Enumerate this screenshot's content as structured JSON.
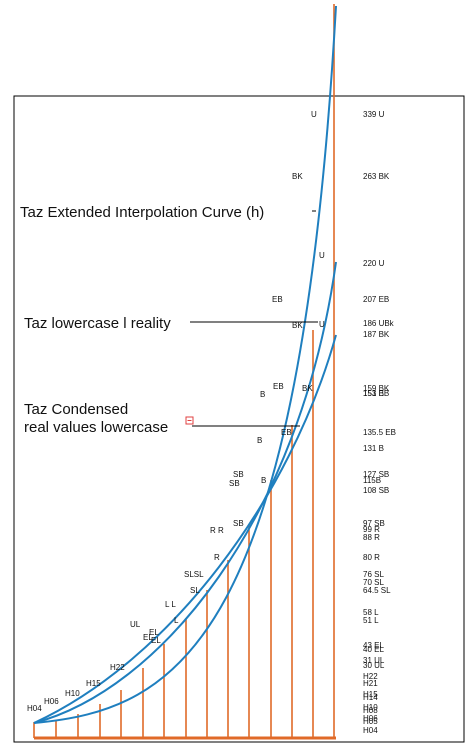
{
  "annotations": {
    "extended": "Taz Extended Interpolation Curve (h)",
    "lowercase_l": "Taz lowercase l reality",
    "condensed_line1": "Taz Condensed",
    "condensed_line2": "real values lowercase"
  },
  "weights_bottom_to_top": [
    "H04",
    "H06",
    "H10",
    "H15",
    "H22",
    "UL",
    "EL",
    "L",
    "SL",
    "R",
    "SB",
    "B",
    "EB",
    "BK",
    "U"
  ],
  "scale_labels": [
    "339 U",
    "263 BK",
    "220 U",
    "207 EB",
    "186 UBk",
    "187 BK",
    "159 BK",
    "153 B",
    "151 EB",
    "135.5 EB",
    "131 B",
    "127 SB",
    "115B",
    "108 SB",
    "97 SB",
    "99 R",
    "88 R",
    "80 R",
    "76 SL",
    "70 SL",
    "64.5 SL",
    "58 L",
    "51 L",
    "43 EL",
    "40 EL",
    "31 UL",
    "30 UL",
    "H22",
    "H21",
    "H15",
    "H14",
    "H10",
    "H08",
    "H06",
    "H05",
    "H04"
  ],
  "curve_labels": [
    "U",
    "BK",
    "U",
    "EB",
    "BK",
    "U",
    "B",
    "EB",
    "BK",
    "B",
    "EB",
    "SB",
    "SB",
    "B",
    "SB",
    "R R",
    "R",
    "SLSL",
    "SL",
    "L  L",
    "L",
    "UL",
    "EL",
    "EL",
    "EL",
    "H22",
    "H15",
    "H10",
    "H06",
    "H04"
  ],
  "colors": {
    "curve": "#1f7fbf",
    "stem": "#e06a28",
    "frame": "#000000",
    "marker": "#e04040"
  }
}
